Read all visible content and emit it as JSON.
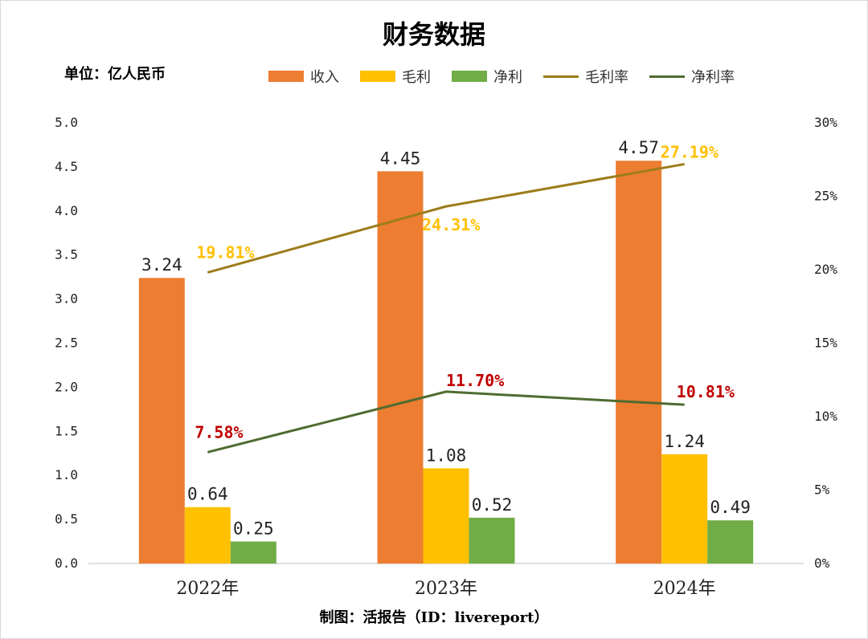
{
  "title": "财务数据",
  "unit_label": "单位：亿人民币",
  "footer": "制图：活报告（ID：livereport）",
  "colors": {
    "revenue": "#ED7D31",
    "gross_profit": "#FFC000",
    "net_profit": "#70AD47",
    "gross_margin_line": "#9C7C1A",
    "net_margin_line": "#4E6B30",
    "gross_margin_label": "#FFC000",
    "net_margin_label": "#C00000"
  },
  "legend": [
    {
      "name": "收入",
      "kind": "bar",
      "color": "#ED7D31"
    },
    {
      "name": "毛利",
      "kind": "bar",
      "color": "#FFC000"
    },
    {
      "name": "净利",
      "kind": "bar",
      "color": "#70AD47"
    },
    {
      "name": "毛利率",
      "kind": "line",
      "color": "#9C7C1A"
    },
    {
      "name": "净利率",
      "kind": "line",
      "color": "#4E6B30"
    }
  ],
  "chart_data": {
    "type": "bar",
    "title": "财务数据",
    "categories": [
      "2022年",
      "2023年",
      "2024年"
    ],
    "series": [
      {
        "name": "收入",
        "type": "bar",
        "axis": "left",
        "values": [
          3.24,
          4.45,
          4.57
        ],
        "labels": [
          "3.24",
          "4.45",
          "4.57"
        ]
      },
      {
        "name": "毛利",
        "type": "bar",
        "axis": "left",
        "values": [
          0.64,
          1.08,
          1.24
        ],
        "labels": [
          "0.64",
          "1.08",
          "1.24"
        ]
      },
      {
        "name": "净利",
        "type": "bar",
        "axis": "left",
        "values": [
          0.25,
          0.52,
          0.49
        ],
        "labels": [
          "0.25",
          "0.52",
          "0.49"
        ]
      },
      {
        "name": "毛利率",
        "type": "line",
        "axis": "right",
        "values": [
          19.81,
          24.31,
          27.19
        ],
        "labels": [
          "19.81%",
          "24.31%",
          "27.19%"
        ]
      },
      {
        "name": "净利率",
        "type": "line",
        "axis": "right",
        "values": [
          7.58,
          11.7,
          10.81
        ],
        "labels": [
          "7.58%",
          "11.70%",
          "10.81%"
        ]
      }
    ],
    "y_left": {
      "range": [
        0,
        5.0
      ],
      "ticks": [
        "0.0",
        "0.5",
        "1.0",
        "1.5",
        "2.0",
        "2.5",
        "3.0",
        "3.5",
        "4.0",
        "4.5",
        "5.0"
      ]
    },
    "y_right": {
      "range": [
        0,
        30
      ],
      "ticks": [
        "0%",
        "5%",
        "10%",
        "15%",
        "20%",
        "25%",
        "30%"
      ]
    },
    "grid": false,
    "legend_position": "top"
  }
}
